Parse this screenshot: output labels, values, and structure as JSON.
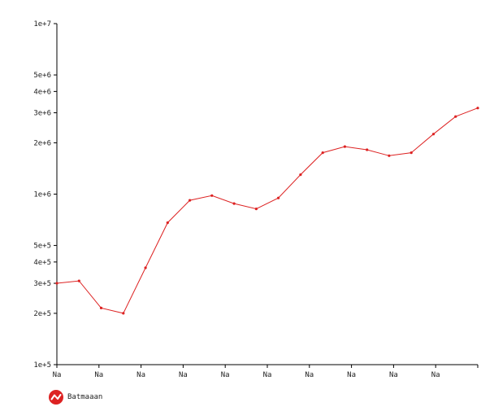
{
  "chart_data": {
    "type": "line",
    "y_scale": "log",
    "ylim": [
      100000,
      10000000
    ],
    "y_ticks": [
      {
        "value": 100000,
        "label": "1e+5"
      },
      {
        "value": 200000,
        "label": "2e+5"
      },
      {
        "value": 300000,
        "label": "3e+5"
      },
      {
        "value": 400000,
        "label": "4e+5"
      },
      {
        "value": 500000,
        "label": "5e+5"
      },
      {
        "value": 1000000,
        "label": "1e+6"
      },
      {
        "value": 2000000,
        "label": "2e+6"
      },
      {
        "value": 3000000,
        "label": "3e+6"
      },
      {
        "value": 4000000,
        "label": "4e+6"
      },
      {
        "value": 5000000,
        "label": "5e+6"
      },
      {
        "value": 10000000,
        "label": "1e+7"
      }
    ],
    "x_tick_labels": [
      "Na",
      "Na",
      "Na",
      "Na",
      "Na",
      "Na",
      "Na",
      "Na",
      "Na",
      "Na"
    ],
    "grid": false,
    "legend_position": "bottom-left",
    "series": [
      {
        "name": "Batmaaan",
        "color": "#dd2222",
        "values": [
          300000,
          310000,
          215000,
          200000,
          370000,
          680000,
          920000,
          980000,
          880000,
          820000,
          950000,
          1300000,
          1750000,
          1900000,
          1820000,
          1680000,
          1750000,
          2250000,
          2850000,
          3200000
        ]
      }
    ]
  },
  "legend": {
    "label": "Batmaaan",
    "icon": "line-chart-icon"
  }
}
